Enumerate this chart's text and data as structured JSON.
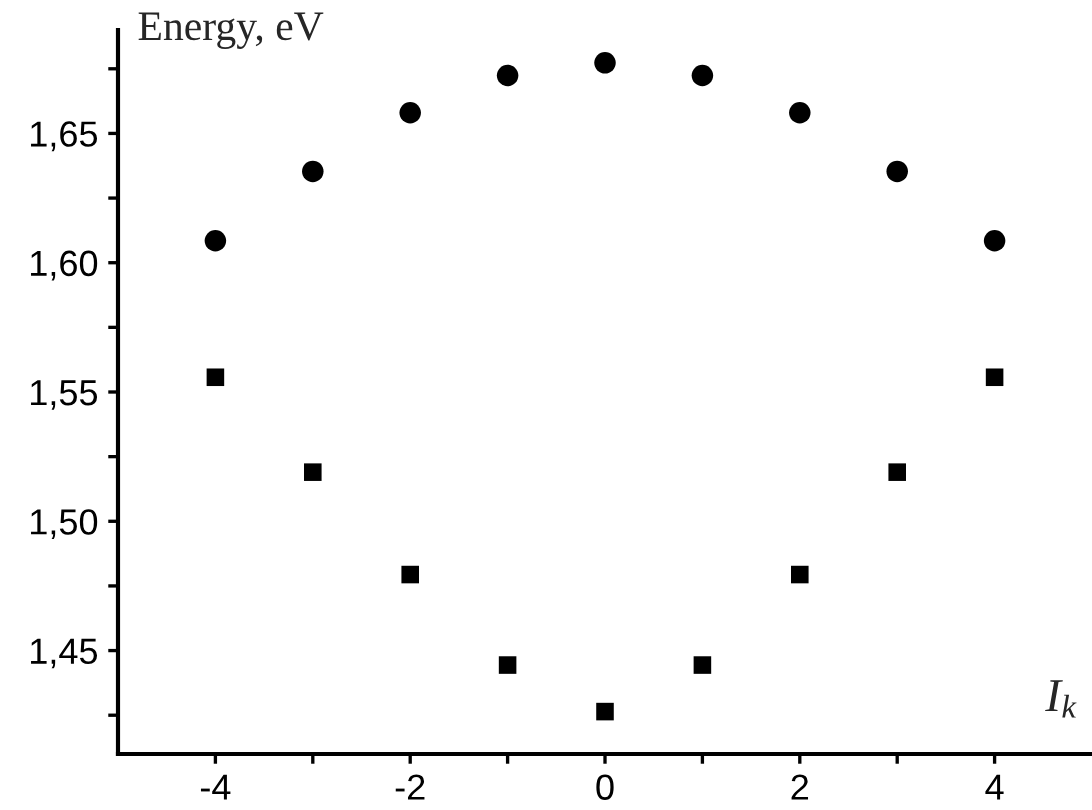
{
  "chart_data": {
    "type": "scatter",
    "xlabel": "I$_{k}$",
    "ylabel": "Energy, eV",
    "x": [
      -4,
      -3,
      -2,
      -1,
      0,
      1,
      2,
      3,
      4
    ],
    "series": [
      {
        "color": "#000000",
        "marker": "circle",
        "values": [
          1.6085,
          1.6353,
          1.658,
          1.6724,
          1.6773,
          1.6724,
          1.658,
          1.6353,
          1.6085
        ]
      },
      {
        "color": "#000000",
        "marker": "square",
        "values": [
          1.5557,
          1.519,
          1.4794,
          1.4444,
          1.4264,
          1.4444,
          1.4794,
          1.519,
          1.5557
        ]
      }
    ],
    "xlim": [
      -5,
      5
    ],
    "xticks": [
      -4,
      {
        "value": -3,
        "label": null
      },
      -2,
      {
        "value": -1,
        "label": null
      },
      0,
      {
        "value": 1,
        "label": null
      },
      2,
      {
        "value": 3,
        "label": null
      },
      4
    ],
    "ylim": [
      1.41,
      1.69
    ],
    "yticks": [
      {
        "value": 1.425,
        "label": null
      },
      {
        "value": 1.45,
        "label": "1,45"
      },
      {
        "value": 1.475,
        "label": null
      },
      {
        "value": 1.5,
        "label": "1,50"
      },
      {
        "value": 1.525,
        "label": null
      },
      {
        "value": 1.55,
        "label": "1,55"
      },
      {
        "value": 1.575,
        "label": null
      },
      {
        "value": 1.6,
        "label": "1,60"
      },
      {
        "value": 1.625,
        "label": null
      },
      {
        "value": 1.65,
        "label": "1,65"
      },
      {
        "value": 1.675,
        "label": null
      }
    ],
    "grid": false,
    "legend": false
  }
}
